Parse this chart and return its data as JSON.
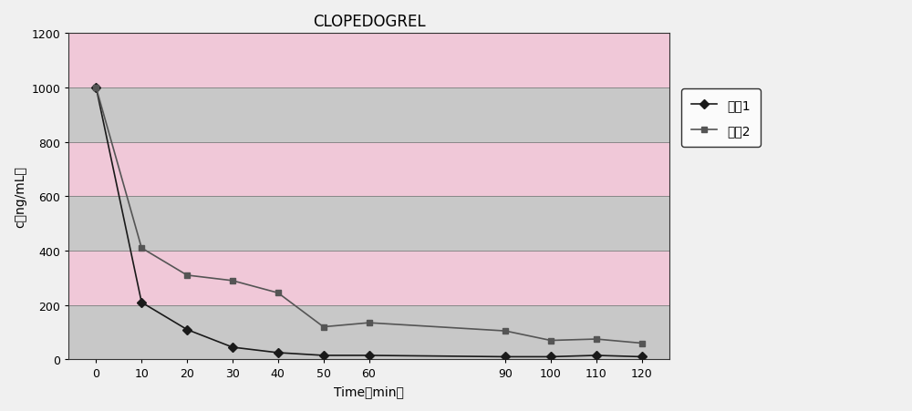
{
  "title": "CLOPEDOGREL",
  "xlabel": "Time（min）",
  "ylabel": "c（ng/mL）",
  "x": [
    0,
    10,
    20,
    30,
    40,
    50,
    60,
    90,
    100,
    110,
    120
  ],
  "series1": [
    1000,
    210,
    110,
    45,
    25,
    15,
    15,
    10,
    10,
    15,
    10
  ],
  "series2": [
    1000,
    410,
    310,
    290,
    245,
    120,
    135,
    105,
    70,
    75,
    60
  ],
  "series1_label": "系列1",
  "series2_label": "系列2",
  "series1_color": "#1a1a1a",
  "series2_color": "#555555",
  "ylim": [
    0,
    1200
  ],
  "yticks": [
    0,
    200,
    400,
    600,
    800,
    1000,
    1200
  ],
  "xticks": [
    0,
    10,
    20,
    30,
    40,
    50,
    60,
    90,
    100,
    110,
    120
  ],
  "plot_bg_color": "#c8c8c8",
  "fig_bg_color": "#f0f0f0",
  "pink_band_color": "#f0c8d8",
  "gray_band_color": "#c8c8c8",
  "title_fontsize": 12,
  "label_fontsize": 10,
  "tick_fontsize": 9,
  "legend_fontsize": 10
}
